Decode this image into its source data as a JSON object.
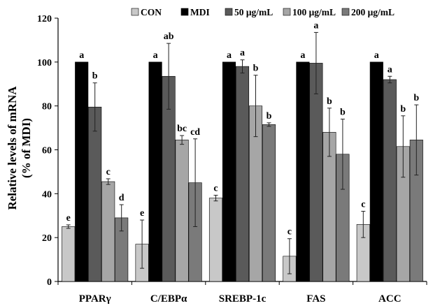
{
  "chart_data": {
    "type": "bar",
    "title": "",
    "xlabel": "",
    "ylabel_line1": "Relative levels of mRNA",
    "ylabel_line2": "(% of MDI)",
    "ylim": [
      0,
      120
    ],
    "yticks": [
      0,
      20,
      40,
      60,
      80,
      100,
      120
    ],
    "legend_position": "top",
    "grid": false,
    "categories": [
      "PPARγ",
      "C/EBPα",
      "SREBP-1c",
      "FAS",
      "ACC"
    ],
    "series": [
      {
        "name": "CON",
        "color": "#c8c8c8",
        "values": [
          25,
          17,
          38,
          11.5,
          26
        ],
        "errors": [
          0.8,
          11,
          1.3,
          8,
          6
        ],
        "letters": [
          "e",
          "e",
          "c",
          "c",
          "c"
        ]
      },
      {
        "name": "MDI",
        "color": "#000000",
        "values": [
          100,
          100,
          100,
          100,
          100
        ],
        "errors": [
          0,
          0,
          0,
          0,
          0
        ],
        "letters": [
          "a",
          "a",
          "a",
          "a",
          "a"
        ]
      },
      {
        "name": "50 μg/mL",
        "color": "#5a5a5a",
        "values": [
          79.5,
          93.5,
          98,
          99.5,
          92
        ],
        "errors": [
          11,
          15,
          3,
          14,
          1.5
        ],
        "letters": [
          "b",
          "ab",
          "a",
          "a",
          "a"
        ]
      },
      {
        "name": "100 μg/mL",
        "color": "#a6a6a6",
        "values": [
          45.5,
          64.5,
          80,
          68,
          61.5
        ],
        "errors": [
          1.3,
          2,
          14,
          11,
          14
        ],
        "letters": [
          "c",
          "bc",
          "b",
          "b",
          "b"
        ]
      },
      {
        "name": "200 μg/mL",
        "color": "#7a7a7a",
        "values": [
          29,
          45,
          71.5,
          58,
          64.5
        ],
        "errors": [
          6,
          20,
          0.8,
          16,
          16
        ],
        "letters": [
          "d",
          "cd",
          "b",
          "b",
          "b"
        ]
      }
    ]
  }
}
